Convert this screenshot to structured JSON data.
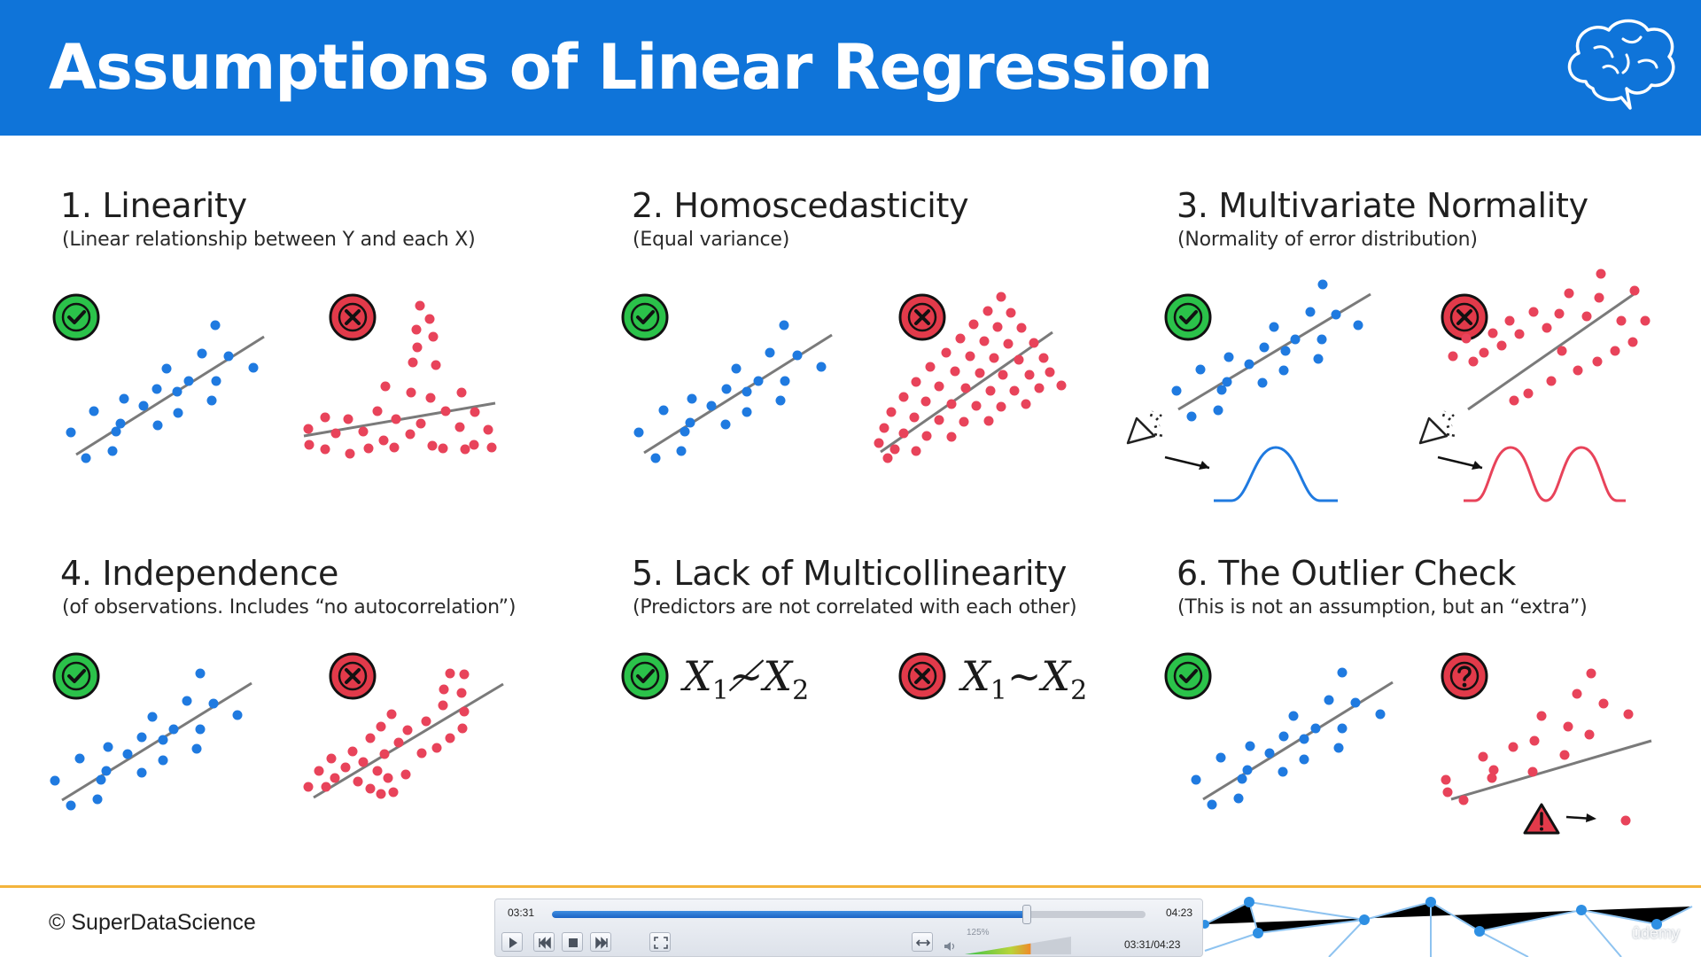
{
  "slide": {
    "title": "Assumptions of Linear Regression",
    "sections": [
      {
        "title": "1. Linearity",
        "subtitle": "(Linear relationship between Y and each X)"
      },
      {
        "title": "2. Homoscedasticity",
        "subtitle": "(Equal variance)"
      },
      {
        "title": "3. Multivariate Normality",
        "subtitle": "(Normality of error distribution)"
      },
      {
        "title": "4. Independence",
        "subtitle": "(of observations. Includes “no autocorrelation”)"
      },
      {
        "title": "5. Lack of Multicollinearity",
        "subtitle": "(Predictors are not correlated with each other)"
      },
      {
        "title": "6. The Outlier Check",
        "subtitle": "(This is not an assumption, but an “extra”)"
      }
    ],
    "multicollinearity": {
      "good": {
        "a": "X",
        "a_sub": "1",
        "op": "≁",
        "b": "X",
        "b_sub": "2"
      },
      "bad": {
        "a": "X",
        "a_sub": "1",
        "op": "~",
        "b": "X",
        "b_sub": "2"
      }
    },
    "copyright": "© SuperDataScience",
    "colors": {
      "header": "#0f74d9",
      "good_point": "#1f7ae0",
      "bad_point": "#e8435a",
      "check_green": "#2bc24a",
      "cross_red": "#e23a4a",
      "footer_line": "#f3b43c"
    }
  },
  "player": {
    "current_time": "03:31",
    "total_time": "04:23",
    "time_readout": "03:31/04:23",
    "progress": 0.8,
    "volume_label": "125%",
    "volume": 0.62
  },
  "watermark": "ûdemy"
}
